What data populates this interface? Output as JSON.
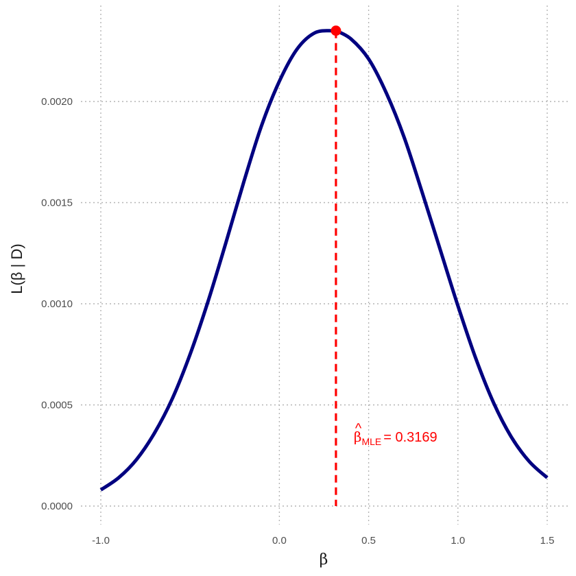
{
  "chart_data": {
    "type": "line",
    "title": "",
    "xlabel": "β",
    "ylabel": "L(β | D)",
    "xlim": [
      -1.0,
      1.5
    ],
    "ylim": [
      0.0,
      0.00235
    ],
    "x_ticks": [
      -1.0,
      0.0,
      0.5,
      1.0,
      1.5
    ],
    "x_tick_labels": [
      "-1.0",
      "0.0",
      "0.5",
      "1.0",
      "1.5"
    ],
    "y_ticks": [
      0.0,
      0.0005,
      0.001,
      0.0015,
      0.002
    ],
    "y_tick_labels": [
      "0.0000",
      "0.0005",
      "0.0010",
      "0.0015",
      "0.0020"
    ],
    "grid": true,
    "series": [
      {
        "color": "#000080",
        "x": [
          -1.0,
          -0.9,
          -0.8,
          -0.7,
          -0.6,
          -0.5,
          -0.4,
          -0.3,
          -0.2,
          -0.1,
          0.0,
          0.1,
          0.2,
          0.3,
          0.3169,
          0.4,
          0.5,
          0.6,
          0.7,
          0.8,
          0.9,
          1.0,
          1.1,
          1.2,
          1.3,
          1.4,
          1.5
        ],
        "values": [
          8e-05,
          0.00014,
          0.00023,
          0.00036,
          0.00053,
          0.00075,
          0.00101,
          0.0013,
          0.0016,
          0.00188,
          0.0021,
          0.00226,
          0.00234,
          0.00235,
          0.00235,
          0.00231,
          0.00221,
          0.00204,
          0.00182,
          0.00155,
          0.00127,
          0.00099,
          0.00073,
          0.00051,
          0.00034,
          0.00022,
          0.00014
        ]
      }
    ],
    "mle": {
      "x": 0.3169,
      "y": 0.00235,
      "color": "#ff0000",
      "label_symbol": "β",
      "label_subscript": "MLE",
      "label_value": "= 0.3169"
    }
  }
}
